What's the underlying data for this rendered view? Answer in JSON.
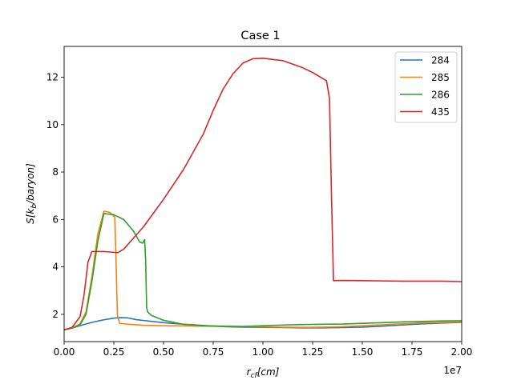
{
  "chart_data": {
    "type": "line",
    "title": "Case 1",
    "xlabel": "r_cf[cm]",
    "ylabel": "S[k_b/baryon]",
    "x_offset_label": "1e7",
    "x_scale": 10000000,
    "xlim": [
      0,
      20000000
    ],
    "ylim": [
      0.85,
      13.3
    ],
    "x_ticks": [
      0,
      2500000,
      5000000,
      7500000,
      10000000,
      12500000,
      15000000,
      17500000,
      20000000
    ],
    "x_tick_labels": [
      "0.00",
      "0.25",
      "0.50",
      "0.75",
      "1.00",
      "1.25",
      "1.50",
      "1.75",
      "2.00"
    ],
    "y_ticks": [
      2,
      4,
      6,
      8,
      10,
      12
    ],
    "y_tick_labels": [
      "2",
      "4",
      "6",
      "8",
      "10",
      "12"
    ],
    "grid": false,
    "legend_position": "top-right",
    "series": [
      {
        "name": "284",
        "color": "#1f77b4",
        "x": [
          0,
          500000,
          1000000,
          1500000,
          2000000,
          2500000,
          2800000,
          3200000,
          3600000,
          4000000,
          5000000,
          6000000,
          7000000,
          8000000,
          9000000,
          10000000,
          11000000,
          12000000,
          13000000,
          14000000,
          15000000,
          16000000,
          17000000,
          18000000,
          19000000,
          20000000
        ],
        "y": [
          1.35,
          1.45,
          1.57,
          1.68,
          1.77,
          1.84,
          1.86,
          1.85,
          1.78,
          1.74,
          1.65,
          1.58,
          1.53,
          1.48,
          1.46,
          1.45,
          1.44,
          1.43,
          1.43,
          1.44,
          1.46,
          1.5,
          1.55,
          1.6,
          1.63,
          1.66
        ]
      },
      {
        "name": "285",
        "color": "#ff7f0e",
        "x": [
          0,
          400000,
          800000,
          1100000,
          1400000,
          1700000,
          2000000,
          2300000,
          2550000,
          2620000,
          2680000,
          2800000,
          3200000,
          4000000,
          5000000,
          6000000,
          7000000,
          8000000,
          9000000,
          10000000,
          11000000,
          12000000,
          13000000,
          14000000,
          15000000,
          16000000,
          17000000,
          18000000,
          19000000,
          20000000
        ],
        "y": [
          1.35,
          1.42,
          1.6,
          2.1,
          3.6,
          5.4,
          6.35,
          6.3,
          6.1,
          4.0,
          1.95,
          1.62,
          1.58,
          1.54,
          1.52,
          1.51,
          1.5,
          1.49,
          1.48,
          1.47,
          1.46,
          1.45,
          1.46,
          1.48,
          1.52,
          1.56,
          1.6,
          1.64,
          1.66,
          1.68
        ]
      },
      {
        "name": "286",
        "color": "#2ca02c",
        "x": [
          0,
          400000,
          800000,
          1100000,
          1400000,
          1700000,
          2000000,
          2500000,
          3000000,
          3500000,
          3800000,
          3950000,
          4050000,
          4100000,
          4150000,
          4200000,
          4400000,
          5000000,
          6000000,
          7000000,
          8000000,
          9000000,
          10000000,
          11000000,
          12000000,
          13000000,
          14000000,
          15000000,
          16000000,
          17000000,
          18000000,
          19000000,
          20000000
        ],
        "y": [
          1.35,
          1.42,
          1.55,
          2.0,
          3.4,
          5.1,
          6.25,
          6.2,
          6.0,
          5.5,
          5.05,
          5.0,
          5.15,
          4.3,
          2.3,
          2.1,
          1.95,
          1.75,
          1.58,
          1.52,
          1.5,
          1.49,
          1.52,
          1.55,
          1.57,
          1.58,
          1.59,
          1.62,
          1.65,
          1.68,
          1.7,
          1.72,
          1.73
        ]
      },
      {
        "name": "435",
        "color": "#d62728",
        "x": [
          0,
          400000,
          800000,
          1000000,
          1200000,
          1400000,
          2000000,
          2700000,
          3000000,
          4000000,
          5000000,
          6000000,
          7000000,
          7500000,
          8000000,
          8500000,
          9000000,
          9500000,
          10000000,
          11000000,
          12000000,
          12500000,
          13000000,
          13200000,
          13350000,
          13450000,
          13550000,
          14000000,
          15000000,
          16000000,
          17000000,
          18000000,
          19000000,
          20000000
        ],
        "y": [
          1.35,
          1.45,
          1.9,
          2.8,
          4.2,
          4.65,
          4.65,
          4.6,
          4.75,
          5.7,
          6.85,
          8.1,
          9.6,
          10.6,
          11.5,
          12.15,
          12.6,
          12.78,
          12.8,
          12.7,
          12.4,
          12.2,
          11.95,
          11.85,
          11.1,
          7.0,
          3.42,
          3.43,
          3.42,
          3.41,
          3.4,
          3.4,
          3.4,
          3.38
        ]
      }
    ]
  }
}
